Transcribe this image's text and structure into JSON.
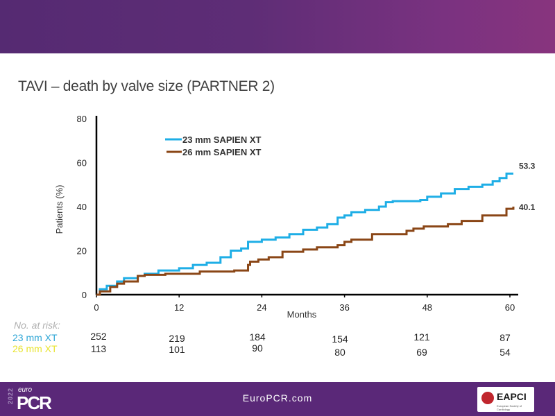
{
  "slide": {
    "title": "TAVI – death by valve size (PARTNER 2)",
    "footer_link": "EuroPCR.com",
    "logo": {
      "euro": "euro",
      "pcr": "PCR",
      "year": "2022"
    },
    "partner_logo": {
      "name": "EAPCI",
      "sub": "European Society of Cardiology"
    }
  },
  "colors": {
    "header": "#5a2a76",
    "footer": "#5a2878",
    "series_23": "#1eaee6",
    "series_26": "#8a4616",
    "risk_23": "#2ea6d6",
    "risk_26": "#e8e430"
  },
  "chart_data": {
    "type": "line",
    "step": true,
    "title": "",
    "xlabel": "Months",
    "ylabel": "Patients (%)",
    "xlim": [
      0,
      60
    ],
    "ylim": [
      0,
      80
    ],
    "xticks": [
      "0",
      "12",
      "24",
      "36",
      "48",
      "60"
    ],
    "yticks": [
      "0",
      "20",
      "40",
      "60",
      "80"
    ],
    "grid": false,
    "legend_placement": "top-left",
    "series": [
      {
        "name": "23 mm SAPIEN XT",
        "end_label": "53.3",
        "color": "#1eaee6",
        "points": [
          [
            0,
            0
          ],
          [
            0.5,
            2.5
          ],
          [
            1.5,
            4
          ],
          [
            3,
            6
          ],
          [
            4,
            7.5
          ],
          [
            6,
            8.5
          ],
          [
            7,
            9.5
          ],
          [
            9,
            11
          ],
          [
            12,
            12
          ],
          [
            14,
            13.5
          ],
          [
            16,
            14.5
          ],
          [
            18,
            17
          ],
          [
            19.5,
            20
          ],
          [
            21,
            21
          ],
          [
            22,
            24
          ],
          [
            24,
            25
          ],
          [
            26,
            26
          ],
          [
            28,
            27.5
          ],
          [
            30,
            29.5
          ],
          [
            32,
            30.5
          ],
          [
            33.5,
            32
          ],
          [
            35,
            35
          ],
          [
            36,
            36
          ],
          [
            37,
            37.5
          ],
          [
            39,
            38.5
          ],
          [
            41,
            40
          ],
          [
            42,
            42
          ],
          [
            43,
            42.5
          ],
          [
            47,
            43
          ],
          [
            48,
            44.5
          ],
          [
            50,
            46
          ],
          [
            52,
            48
          ],
          [
            54,
            49
          ],
          [
            56,
            50
          ],
          [
            57.5,
            51.5
          ],
          [
            58.5,
            53
          ],
          [
            59.5,
            55
          ],
          [
            60.5,
            55
          ]
        ]
      },
      {
        "name": "26 mm SAPIEN XT",
        "end_label": "40.1",
        "color": "#8a4616",
        "points": [
          [
            0,
            0
          ],
          [
            0.5,
            1.5
          ],
          [
            2,
            3.5
          ],
          [
            3,
            5
          ],
          [
            4,
            6
          ],
          [
            6,
            8.5
          ],
          [
            7,
            9
          ],
          [
            10,
            9.5
          ],
          [
            15,
            10.5
          ],
          [
            20,
            11
          ],
          [
            22,
            13.5
          ],
          [
            22.3,
            15
          ],
          [
            23.5,
            16
          ],
          [
            25,
            17
          ],
          [
            27,
            19.5
          ],
          [
            30,
            20.5
          ],
          [
            32,
            21.5
          ],
          [
            35,
            22.5
          ],
          [
            36,
            24
          ],
          [
            37,
            25
          ],
          [
            40,
            27.5
          ],
          [
            45,
            29
          ],
          [
            46,
            30
          ],
          [
            47.5,
            31
          ],
          [
            51,
            32
          ],
          [
            53,
            33.5
          ],
          [
            56,
            36
          ],
          [
            59.5,
            39
          ],
          [
            60.5,
            40
          ]
        ]
      }
    ],
    "at_risk": {
      "label": "No. at risk:",
      "rows": [
        {
          "name": "23 mm XT",
          "values": [
            "252",
            "219",
            "184",
            "154",
            "121",
            "87"
          ]
        },
        {
          "name": "26 mm XT",
          "values": [
            "113",
            "101",
            "90",
            "80",
            "69",
            "54"
          ]
        }
      ]
    }
  }
}
